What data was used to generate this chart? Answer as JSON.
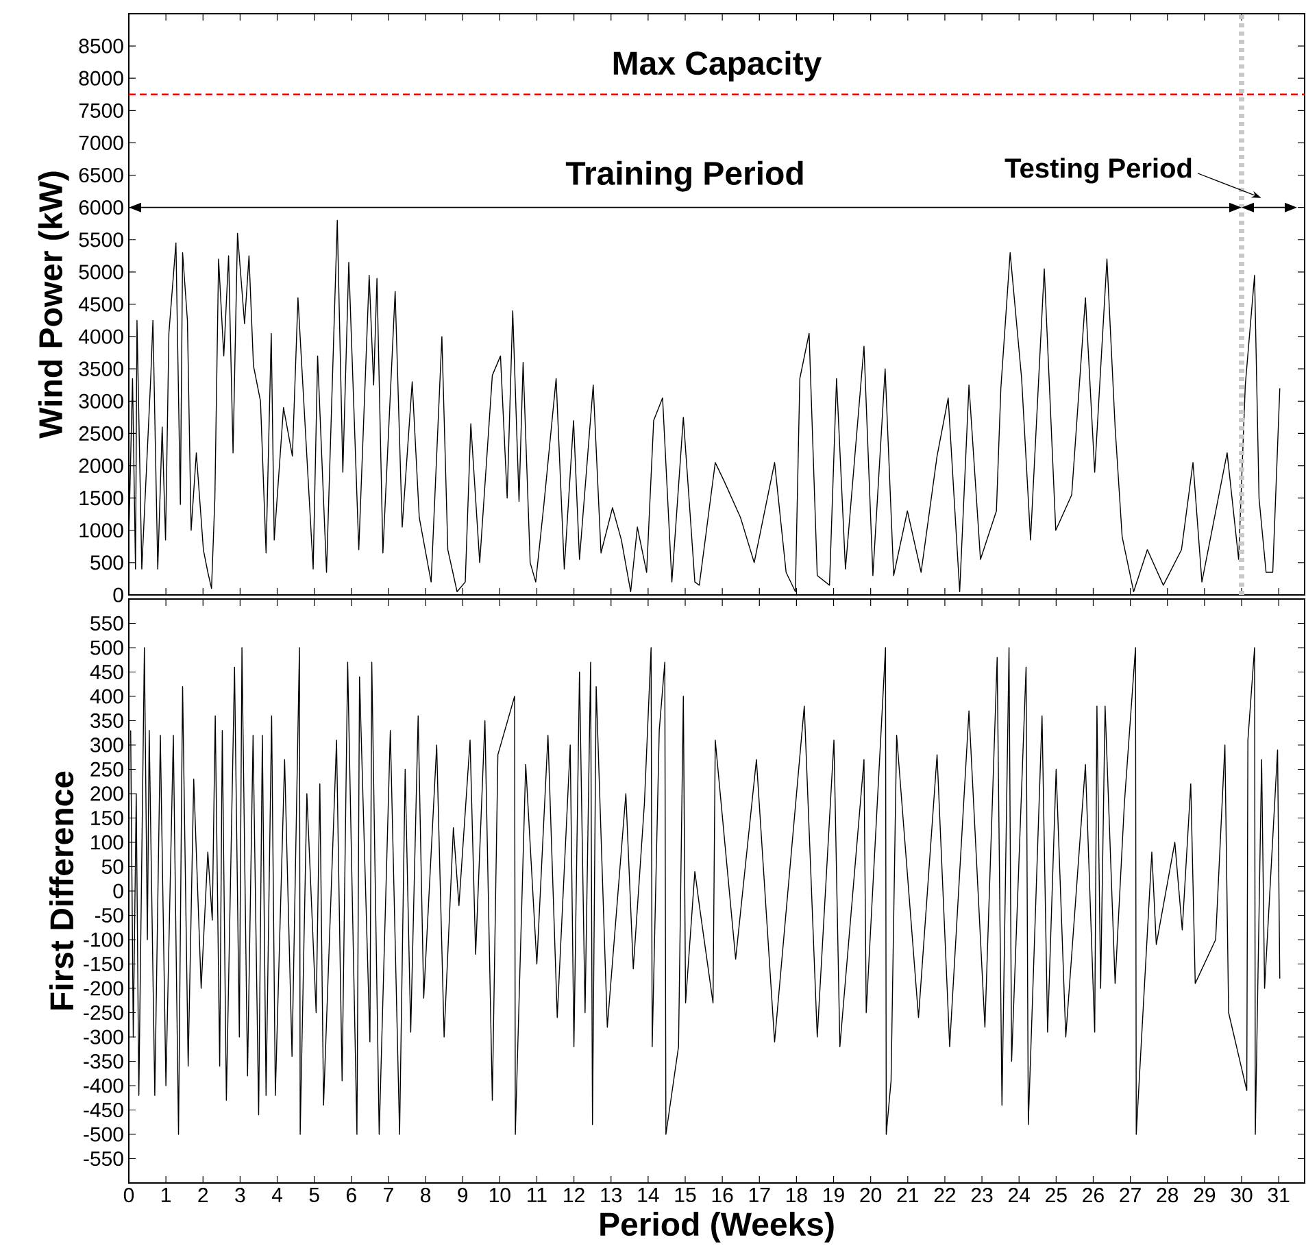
{
  "chart_data": [
    {
      "type": "line",
      "ylabel": "Wind Power (kW)",
      "xlim": [
        0,
        31.7
      ],
      "xticks": [
        0,
        1,
        2,
        3,
        4,
        5,
        6,
        7,
        8,
        9,
        10,
        11,
        12,
        13,
        14,
        15,
        16,
        17,
        18,
        19,
        20,
        21,
        22,
        23,
        24,
        25,
        26,
        27,
        28,
        29,
        30,
        31
      ],
      "ylim": [
        0,
        9000
      ],
      "yticks": [
        0,
        500,
        1000,
        1500,
        2000,
        2500,
        3000,
        3500,
        4000,
        4500,
        5000,
        5500,
        6000,
        6500,
        7000,
        7500,
        8000,
        8500
      ],
      "tick_labels": "y",
      "series": [
        {
          "color": "#000000",
          "x": [
            0,
            0.1,
            0.18,
            0.22,
            0.35,
            0.59,
            0.65,
            0.78,
            0.9,
            0.99,
            1.08,
            1.27,
            1.39,
            1.45,
            1.58,
            1.68,
            1.82,
            2.01,
            2.13,
            2.23,
            2.32,
            2.42,
            2.56,
            2.69,
            2.81,
            2.93,
            3.12,
            3.24,
            3.36,
            3.55,
            3.7,
            3.84,
            3.92,
            4.17,
            4.41,
            4.56,
            4.97,
            5.09,
            5.33,
            5.62,
            5.77,
            5.93,
            6.2,
            6.48,
            6.6,
            6.69,
            6.85,
            7.18,
            7.37,
            7.64,
            7.83,
            8.15,
            8.44,
            8.6,
            8.85,
            9.07,
            9.22,
            9.46,
            9.8,
            10.02,
            10.2,
            10.35,
            10.52,
            10.63,
            10.82,
            10.97,
            11.19,
            11.52,
            11.74,
            11.99,
            12.15,
            12.52,
            12.73,
            13.04,
            13.28,
            13.53,
            13.71,
            13.96,
            14.15,
            14.39,
            14.64,
            14.95,
            15.26,
            15.38,
            15.81,
            16.06,
            16.49,
            16.86,
            17.41,
            17.72,
            17.97,
            18.09,
            18.34,
            18.56,
            18.89,
            19.08,
            19.32,
            19.82,
            20.06,
            20.39,
            20.62,
            20.99,
            21.36,
            21.79,
            22.09,
            22.4,
            22.65,
            22.96,
            23.39,
            23.51,
            23.76,
            24.07,
            24.31,
            24.68,
            24.99,
            25.42,
            25.79,
            26.04,
            26.37,
            26.59,
            26.78,
            27.09,
            27.46,
            27.89,
            28.38,
            28.69,
            28.93,
            29.61,
            29.92,
            30.1,
            30.35,
            30.47,
            30.66,
            30.84,
            31.03
          ],
          "values": [
            900,
            3350,
            400,
            4250,
            400,
            3350,
            4250,
            400,
            2600,
            850,
            4050,
            5450,
            1400,
            5300,
            4250,
            1000,
            2200,
            700,
            350,
            100,
            1500,
            5200,
            3700,
            5250,
            2200,
            5600,
            4200,
            5250,
            3550,
            3000,
            650,
            4050,
            850,
            2900,
            2150,
            4600,
            400,
            3700,
            350,
            5800,
            1900,
            5150,
            700,
            4950,
            3250,
            4900,
            650,
            4700,
            1050,
            3300,
            1200,
            200,
            4000,
            700,
            50,
            200,
            2650,
            500,
            3400,
            3700,
            1500,
            4400,
            1450,
            3600,
            500,
            200,
            1400,
            3350,
            400,
            2700,
            550,
            3250,
            650,
            1350,
            850,
            50,
            1050,
            350,
            2700,
            3050,
            200,
            2750,
            200,
            150,
            2050,
            1750,
            1200,
            500,
            2050,
            350,
            50,
            3350,
            4050,
            300,
            150,
            3350,
            400,
            3850,
            300,
            3500,
            300,
            1300,
            350,
            2150,
            3050,
            50,
            3250,
            550,
            1300,
            3200,
            5300,
            3350,
            850,
            5050,
            1000,
            1550,
            4600,
            1900,
            5200,
            2600,
            900,
            50,
            700,
            150,
            700,
            2050,
            200,
            2200,
            550,
            3250,
            4950,
            1500,
            350,
            350,
            3200
          ]
        }
      ],
      "ref_lines": [
        {
          "axis": "y",
          "value": 7750,
          "label": "Max Capacity",
          "color": "#ff0000",
          "line_style": "dashed"
        },
        {
          "axis": "x",
          "value": 30,
          "color": "#c8c8c8",
          "line_style": "dotted"
        }
      ],
      "annotations": [
        "Training Period",
        "Testing Period"
      ]
    },
    {
      "type": "line",
      "xlabel": "Period (Weeks)",
      "ylabel": "First Difference",
      "xlim": [
        0,
        31.7
      ],
      "xticks": [
        0,
        1,
        2,
        3,
        4,
        5,
        6,
        7,
        8,
        9,
        10,
        11,
        12,
        13,
        14,
        15,
        16,
        17,
        18,
        19,
        20,
        21,
        22,
        23,
        24,
        25,
        26,
        27,
        28,
        29,
        30,
        31
      ],
      "ylim": [
        -600,
        600
      ],
      "yticks": [
        -550,
        -500,
        -450,
        -400,
        -350,
        -300,
        -250,
        -200,
        -150,
        -100,
        -50,
        0,
        50,
        100,
        150,
        200,
        250,
        300,
        350,
        400,
        450,
        500,
        550
      ],
      "series": [
        {
          "color": "#000000",
          "x": [
            0.05,
            0.12,
            0.2,
            0.27,
            0.42,
            0.5,
            0.55,
            0.7,
            0.85,
            1.0,
            1.2,
            1.34,
            1.45,
            1.6,
            1.75,
            1.95,
            2.13,
            2.25,
            2.33,
            2.45,
            2.52,
            2.63,
            2.85,
            2.98,
            3.05,
            3.2,
            3.35,
            3.5,
            3.6,
            3.7,
            3.85,
            3.95,
            4.2,
            4.4,
            4.6,
            4.62,
            4.8,
            5.05,
            5.15,
            5.25,
            5.6,
            5.75,
            5.9,
            6.15,
            6.22,
            6.5,
            6.55,
            6.75,
            7.05,
            7.3,
            7.45,
            7.6,
            7.8,
            7.95,
            8.3,
            8.5,
            8.75,
            8.9,
            9.2,
            9.35,
            9.6,
            9.8,
            9.95,
            10.4,
            10.42,
            10.7,
            11.0,
            11.3,
            11.55,
            11.9,
            12.0,
            12.15,
            12.3,
            12.45,
            12.5,
            12.6,
            12.9,
            13.4,
            13.6,
            13.9,
            14.08,
            14.11,
            14.3,
            14.45,
            14.48,
            14.82,
            14.95,
            15.01,
            15.26,
            15.4,
            15.75,
            15.81,
            16.36,
            16.92,
            17.41,
            18.21,
            18.56,
            19.01,
            19.17,
            19.82,
            19.88,
            20.4,
            20.42,
            20.55,
            20.7,
            21.29,
            21.79,
            22.13,
            22.65,
            23.08,
            23.41,
            23.54,
            23.73,
            23.8,
            24.19,
            24.25,
            24.62,
            24.77,
            25.0,
            25.26,
            25.79,
            26.04,
            26.1,
            26.2,
            26.32,
            26.59,
            26.84,
            27.14,
            27.16,
            27.58,
            27.7,
            28.2,
            28.4,
            28.63,
            28.75,
            29.3,
            29.55,
            29.65,
            30.14,
            30.17,
            30.35,
            30.37,
            30.54,
            30.62,
            30.97,
            31.03
          ],
          "values": [
            330,
            -300,
            200,
            -420,
            500,
            -100,
            330,
            -420,
            320,
            -400,
            320,
            -500,
            420,
            -360,
            230,
            -200,
            80,
            -60,
            360,
            -360,
            330,
            -430,
            460,
            -300,
            500,
            -380,
            320,
            -460,
            320,
            -420,
            360,
            -420,
            270,
            -340,
            500,
            -500,
            200,
            -250,
            220,
            -440,
            310,
            -390,
            470,
            -500,
            440,
            -310,
            470,
            -500,
            330,
            -500,
            250,
            -290,
            360,
            -220,
            300,
            -300,
            130,
            -30,
            310,
            -130,
            350,
            -430,
            280,
            400,
            -500,
            260,
            -150,
            320,
            -260,
            300,
            -320,
            450,
            -250,
            470,
            -480,
            420,
            -280,
            200,
            -160,
            180,
            500,
            -320,
            330,
            470,
            -500,
            -320,
            400,
            -230,
            40,
            -40,
            -230,
            310,
            -140,
            270,
            -310,
            380,
            -300,
            310,
            -320,
            270,
            -250,
            500,
            -500,
            -390,
            320,
            -260,
            280,
            -320,
            370,
            -280,
            480,
            -440,
            500,
            -350,
            460,
            -480,
            360,
            -290,
            250,
            -300,
            260,
            -290,
            380,
            -200,
            380,
            -190,
            180,
            500,
            -500,
            80,
            -110,
            100,
            -80,
            220,
            -190,
            -100,
            300,
            -250,
            -410,
            310,
            500,
            -500,
            270,
            -200,
            290,
            -180
          ]
        }
      ]
    }
  ]
}
